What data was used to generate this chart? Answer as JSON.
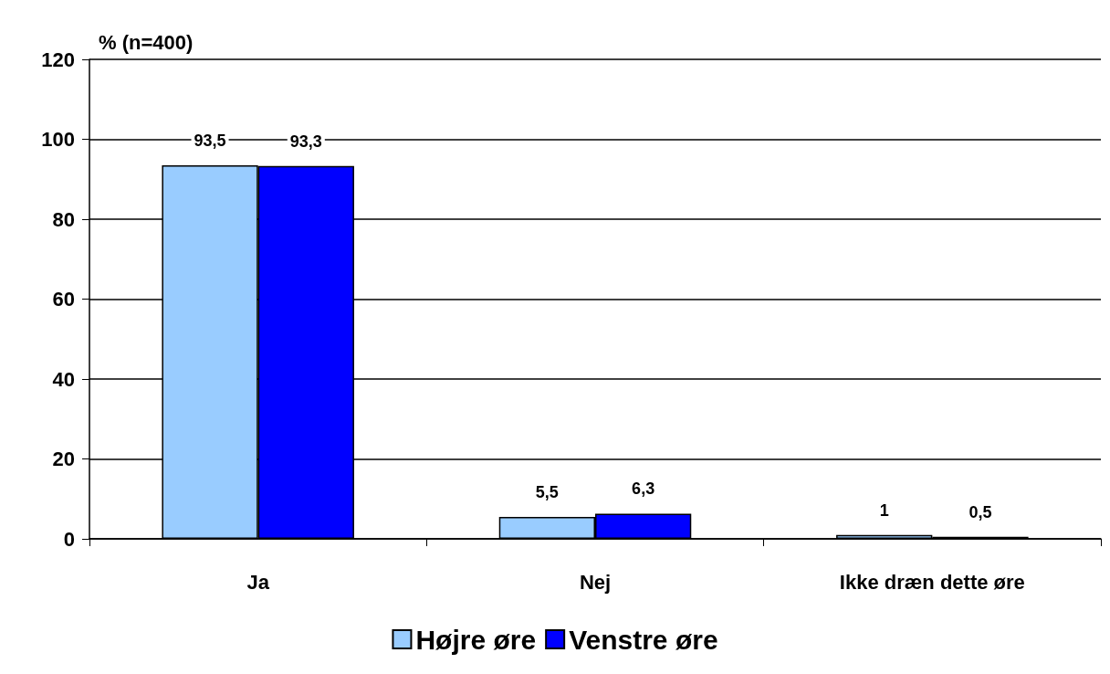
{
  "chart_data": {
    "type": "bar",
    "ylabel": "% (n=400)",
    "categories": [
      "Ja",
      "Nej",
      "Ikke dræn dette øre"
    ],
    "series": [
      {
        "name": "Højre øre",
        "color": "#99ccff",
        "values": [
          93.5,
          5.5,
          1
        ],
        "value_labels": [
          "93,5",
          "5,5",
          "1"
        ]
      },
      {
        "name": "Venstre øre",
        "color": "#0000ff",
        "values": [
          93.3,
          6.3,
          0.5
        ],
        "value_labels": [
          "93,3",
          "6,3",
          "0,5"
        ]
      }
    ],
    "ylim": [
      0,
      120
    ],
    "yticks": [
      0,
      20,
      40,
      60,
      80,
      100,
      120
    ],
    "grid": "y",
    "legend": "bottom"
  }
}
